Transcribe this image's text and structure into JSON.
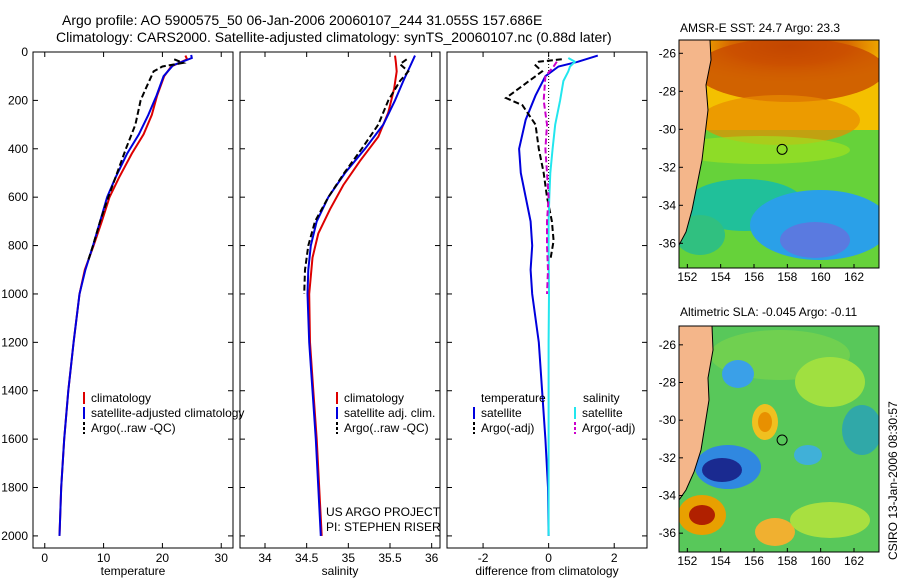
{
  "title": {
    "line1": "Argo profile: AO 5900575_50 06-Jan-2006 20060107_244 31.055S 157.686E",
    "line2": "Climatology: CARS2000. Satellite-adjusted climatology: synTS_20060107.nc (0.88d later)"
  },
  "colors": {
    "climatology": "#dd0000",
    "satellite": "#0000dd",
    "argo": "#000000",
    "satellite_sal": "#22e6ee",
    "argo_sal": "#cc00cc"
  },
  "chart_data": [
    {
      "type": "line",
      "name": "temperature",
      "xlabel": "temperature",
      "ylabel": "",
      "xlim": [
        -2,
        32
      ],
      "ylim": [
        2050,
        0
      ],
      "xticks": [
        0,
        10,
        20,
        30
      ],
      "yticks": [
        0,
        200,
        400,
        600,
        800,
        1000,
        1200,
        1400,
        1600,
        1800,
        2000
      ],
      "legend": [
        "climatology",
        "satellite-adjusted climatology",
        "Argo(..raw -QC)"
      ],
      "series": [
        {
          "name": "climatology",
          "style": "solid",
          "color": "#dd0000",
          "points": [
            [
              23.9,
              15
            ],
            [
              24.2,
              30
            ],
            [
              21.5,
              60
            ],
            [
              20.3,
              100
            ],
            [
              19.1,
              180
            ],
            [
              18.2,
              260
            ],
            [
              16.8,
              340
            ],
            [
              14.8,
              420
            ],
            [
              12.6,
              520
            ],
            [
              11.0,
              600
            ],
            [
              9.7,
              700
            ],
            [
              8.3,
              800
            ],
            [
              6.8,
              900
            ],
            [
              5.9,
              1000
            ],
            [
              4.9,
              1200
            ],
            [
              4.0,
              1400
            ],
            [
              3.3,
              1600
            ],
            [
              2.8,
              1800
            ],
            [
              2.5,
              2000
            ]
          ]
        },
        {
          "name": "satellite-adjusted climatology",
          "style": "solid",
          "color": "#0000dd",
          "points": [
            [
              24.9,
              12
            ],
            [
              25.0,
              25
            ],
            [
              21.8,
              55
            ],
            [
              20.2,
              100
            ],
            [
              19.0,
              180
            ],
            [
              17.6,
              260
            ],
            [
              16.0,
              340
            ],
            [
              14.0,
              420
            ],
            [
              12.0,
              520
            ],
            [
              10.6,
              600
            ],
            [
              9.4,
              700
            ],
            [
              8.2,
              800
            ],
            [
              6.9,
              900
            ],
            [
              5.9,
              1000
            ],
            [
              4.9,
              1200
            ],
            [
              4.0,
              1400
            ],
            [
              3.3,
              1600
            ],
            [
              2.8,
              1800
            ],
            [
              2.5,
              2000
            ]
          ]
        },
        {
          "name": "Argo(..raw -QC)",
          "style": "dashed",
          "color": "#000000",
          "points": [
            [
              22.0,
              30
            ],
            [
              23.5,
              45
            ],
            [
              20.0,
              60
            ],
            [
              18.5,
              80
            ],
            [
              17.2,
              150
            ],
            [
              16.3,
              200
            ],
            [
              15.4,
              300
            ],
            [
              13.8,
              400
            ],
            [
              12.3,
              500
            ],
            [
              10.8,
              600
            ],
            [
              9.4,
              700
            ],
            [
              8.2,
              800
            ],
            [
              7.4,
              860
            ]
          ]
        }
      ]
    },
    {
      "type": "line",
      "name": "salinity",
      "xlabel": "salinity",
      "ylabel": "",
      "xlim": [
        33.7,
        36.1
      ],
      "ylim": [
        2050,
        0
      ],
      "xticks": [
        34,
        34.5,
        35,
        35.5,
        36
      ],
      "yticks": [
        0,
        200,
        400,
        600,
        800,
        1000,
        1200,
        1400,
        1600,
        1800,
        2000
      ],
      "legend": [
        "climatology",
        "satellite adj. clim.",
        "Argo(..raw -QC)"
      ],
      "series": [
        {
          "name": "climatology",
          "style": "solid",
          "color": "#dd0000",
          "points": [
            [
              35.56,
              15
            ],
            [
              35.57,
              40
            ],
            [
              35.58,
              80
            ],
            [
              35.55,
              150
            ],
            [
              35.48,
              250
            ],
            [
              35.36,
              350
            ],
            [
              35.14,
              450
            ],
            [
              34.94,
              550
            ],
            [
              34.78,
              650
            ],
            [
              34.64,
              750
            ],
            [
              34.57,
              850
            ],
            [
              34.53,
              1000
            ],
            [
              34.54,
              1200
            ],
            [
              34.58,
              1400
            ],
            [
              34.62,
              1600
            ],
            [
              34.65,
              1800
            ],
            [
              34.68,
              2000
            ]
          ]
        },
        {
          "name": "satellite adj. clim.",
          "style": "solid",
          "color": "#0000dd",
          "points": [
            [
              35.8,
              15
            ],
            [
              35.74,
              60
            ],
            [
              35.66,
              120
            ],
            [
              35.56,
              200
            ],
            [
              35.42,
              300
            ],
            [
              35.2,
              400
            ],
            [
              34.96,
              500
            ],
            [
              34.76,
              600
            ],
            [
              34.62,
              700
            ],
            [
              34.55,
              800
            ],
            [
              34.52,
              900
            ],
            [
              34.51,
              1000
            ],
            [
              34.53,
              1200
            ],
            [
              34.57,
              1400
            ],
            [
              34.61,
              1600
            ],
            [
              34.64,
              1800
            ],
            [
              34.67,
              2000
            ]
          ]
        },
        {
          "name": "Argo(..raw -QC)",
          "style": "dashed",
          "color": "#000000",
          "points": [
            [
              35.7,
              30
            ],
            [
              35.62,
              50
            ],
            [
              35.72,
              80
            ],
            [
              35.62,
              120
            ],
            [
              35.48,
              200
            ],
            [
              35.36,
              300
            ],
            [
              35.16,
              400
            ],
            [
              34.95,
              500
            ],
            [
              34.76,
              600
            ],
            [
              34.6,
              700
            ],
            [
              34.52,
              800
            ],
            [
              34.48,
              900
            ],
            [
              34.47,
              1000
            ]
          ]
        }
      ]
    },
    {
      "type": "line",
      "name": "difference",
      "xlabel": "difference from climatology",
      "ylabel": "",
      "xlim": [
        -3.1,
        3.0
      ],
      "ylim": [
        2050,
        0
      ],
      "xticks": [
        -2,
        0,
        2
      ],
      "yticks": [],
      "legend": [
        "temperature",
        "satellite",
        "Argo(-adj)",
        "salinity",
        "satellite",
        "Argo(-adj)"
      ],
      "series": [
        {
          "name": "temperature satellite",
          "style": "solid",
          "color": "#0000dd",
          "points": [
            [
              1.5,
              15
            ],
            [
              0.9,
              40
            ],
            [
              0.3,
              60
            ],
            [
              -0.1,
              100
            ],
            [
              -0.4,
              180
            ],
            [
              -0.7,
              280
            ],
            [
              -0.9,
              400
            ],
            [
              -0.85,
              500
            ],
            [
              -0.7,
              600
            ],
            [
              -0.55,
              700
            ],
            [
              -0.5,
              800
            ],
            [
              -0.55,
              900
            ],
            [
              -0.5,
              1000
            ],
            [
              -0.3,
              1200
            ],
            [
              -0.2,
              1400
            ],
            [
              -0.1,
              1600
            ],
            [
              -0.02,
              1800
            ],
            [
              0,
              2000
            ]
          ]
        },
        {
          "name": "temperature Argo(-adj)",
          "style": "dashed",
          "color": "#000000",
          "points": [
            [
              0.4,
              30
            ],
            [
              -0.3,
              40
            ],
            [
              -0.4,
              55
            ],
            [
              -0.2,
              80
            ],
            [
              -0.9,
              150
            ],
            [
              -1.3,
              190
            ],
            [
              -0.8,
              220
            ],
            [
              -0.4,
              300
            ],
            [
              -0.3,
              400
            ],
            [
              -0.15,
              500
            ],
            [
              -0.05,
              600
            ],
            [
              0.1,
              700
            ],
            [
              0.15,
              780
            ],
            [
              0.05,
              860
            ]
          ]
        },
        {
          "name": "salinity satellite",
          "style": "solid",
          "color": "#22e6ee",
          "points": [
            [
              0.6,
              25
            ],
            [
              0.8,
              40
            ],
            [
              0.65,
              60
            ],
            [
              0.6,
              80
            ],
            [
              0.45,
              120
            ],
            [
              0.35,
              200
            ],
            [
              0.2,
              300
            ],
            [
              0.12,
              400
            ],
            [
              0.05,
              500
            ],
            [
              0.02,
              600
            ],
            [
              0,
              700
            ],
            [
              0,
              800
            ],
            [
              0.01,
              1000
            ],
            [
              0,
              1200
            ],
            [
              0,
              1400
            ],
            [
              0,
              1600
            ],
            [
              0,
              1800
            ],
            [
              0,
              2000
            ]
          ]
        },
        {
          "name": "salinity Argo(-adj)",
          "style": "dashed",
          "color": "#cc00cc",
          "points": [
            [
              0.25,
              40
            ],
            [
              0.15,
              60
            ],
            [
              -0.1,
              100
            ],
            [
              -0.15,
              200
            ],
            [
              -0.05,
              300
            ],
            [
              -0.1,
              400
            ],
            [
              -0.05,
              500
            ],
            [
              0.0,
              600
            ],
            [
              -0.05,
              700
            ],
            [
              -0.05,
              800
            ],
            [
              -0.02,
              900
            ],
            [
              -0.05,
              1000
            ]
          ]
        }
      ]
    },
    {
      "type": "heatmap",
      "name": "sst_map",
      "title": "AMSR-E SST: 24.7  Argo: 23.3",
      "xlim": [
        151.5,
        163.5
      ],
      "ylim": [
        -37.3,
        -25.3
      ],
      "xticks": [
        152,
        154,
        156,
        158,
        160,
        162
      ],
      "yticks": [
        -26,
        -28,
        -30,
        -32,
        -34,
        -36
      ],
      "marker": [
        157.686,
        -31.055
      ]
    },
    {
      "type": "heatmap",
      "name": "sla_map",
      "title": "Altimetric SLA: -0.045  Argo: -0.11",
      "xlim": [
        151.5,
        163.5
      ],
      "ylim": [
        -37.0,
        -25.0
      ],
      "xticks": [
        152,
        154,
        156,
        158,
        160,
        162
      ],
      "yticks": [
        -26,
        -28,
        -30,
        -32,
        -34,
        -36
      ],
      "marker": [
        157.686,
        -31.055
      ]
    }
  ],
  "notes": {
    "project": "US ARGO PROJECT",
    "pi": "PI: STEPHEN RISER",
    "stamp": "CSIRO 13-Jan-2006 08:30:57"
  }
}
